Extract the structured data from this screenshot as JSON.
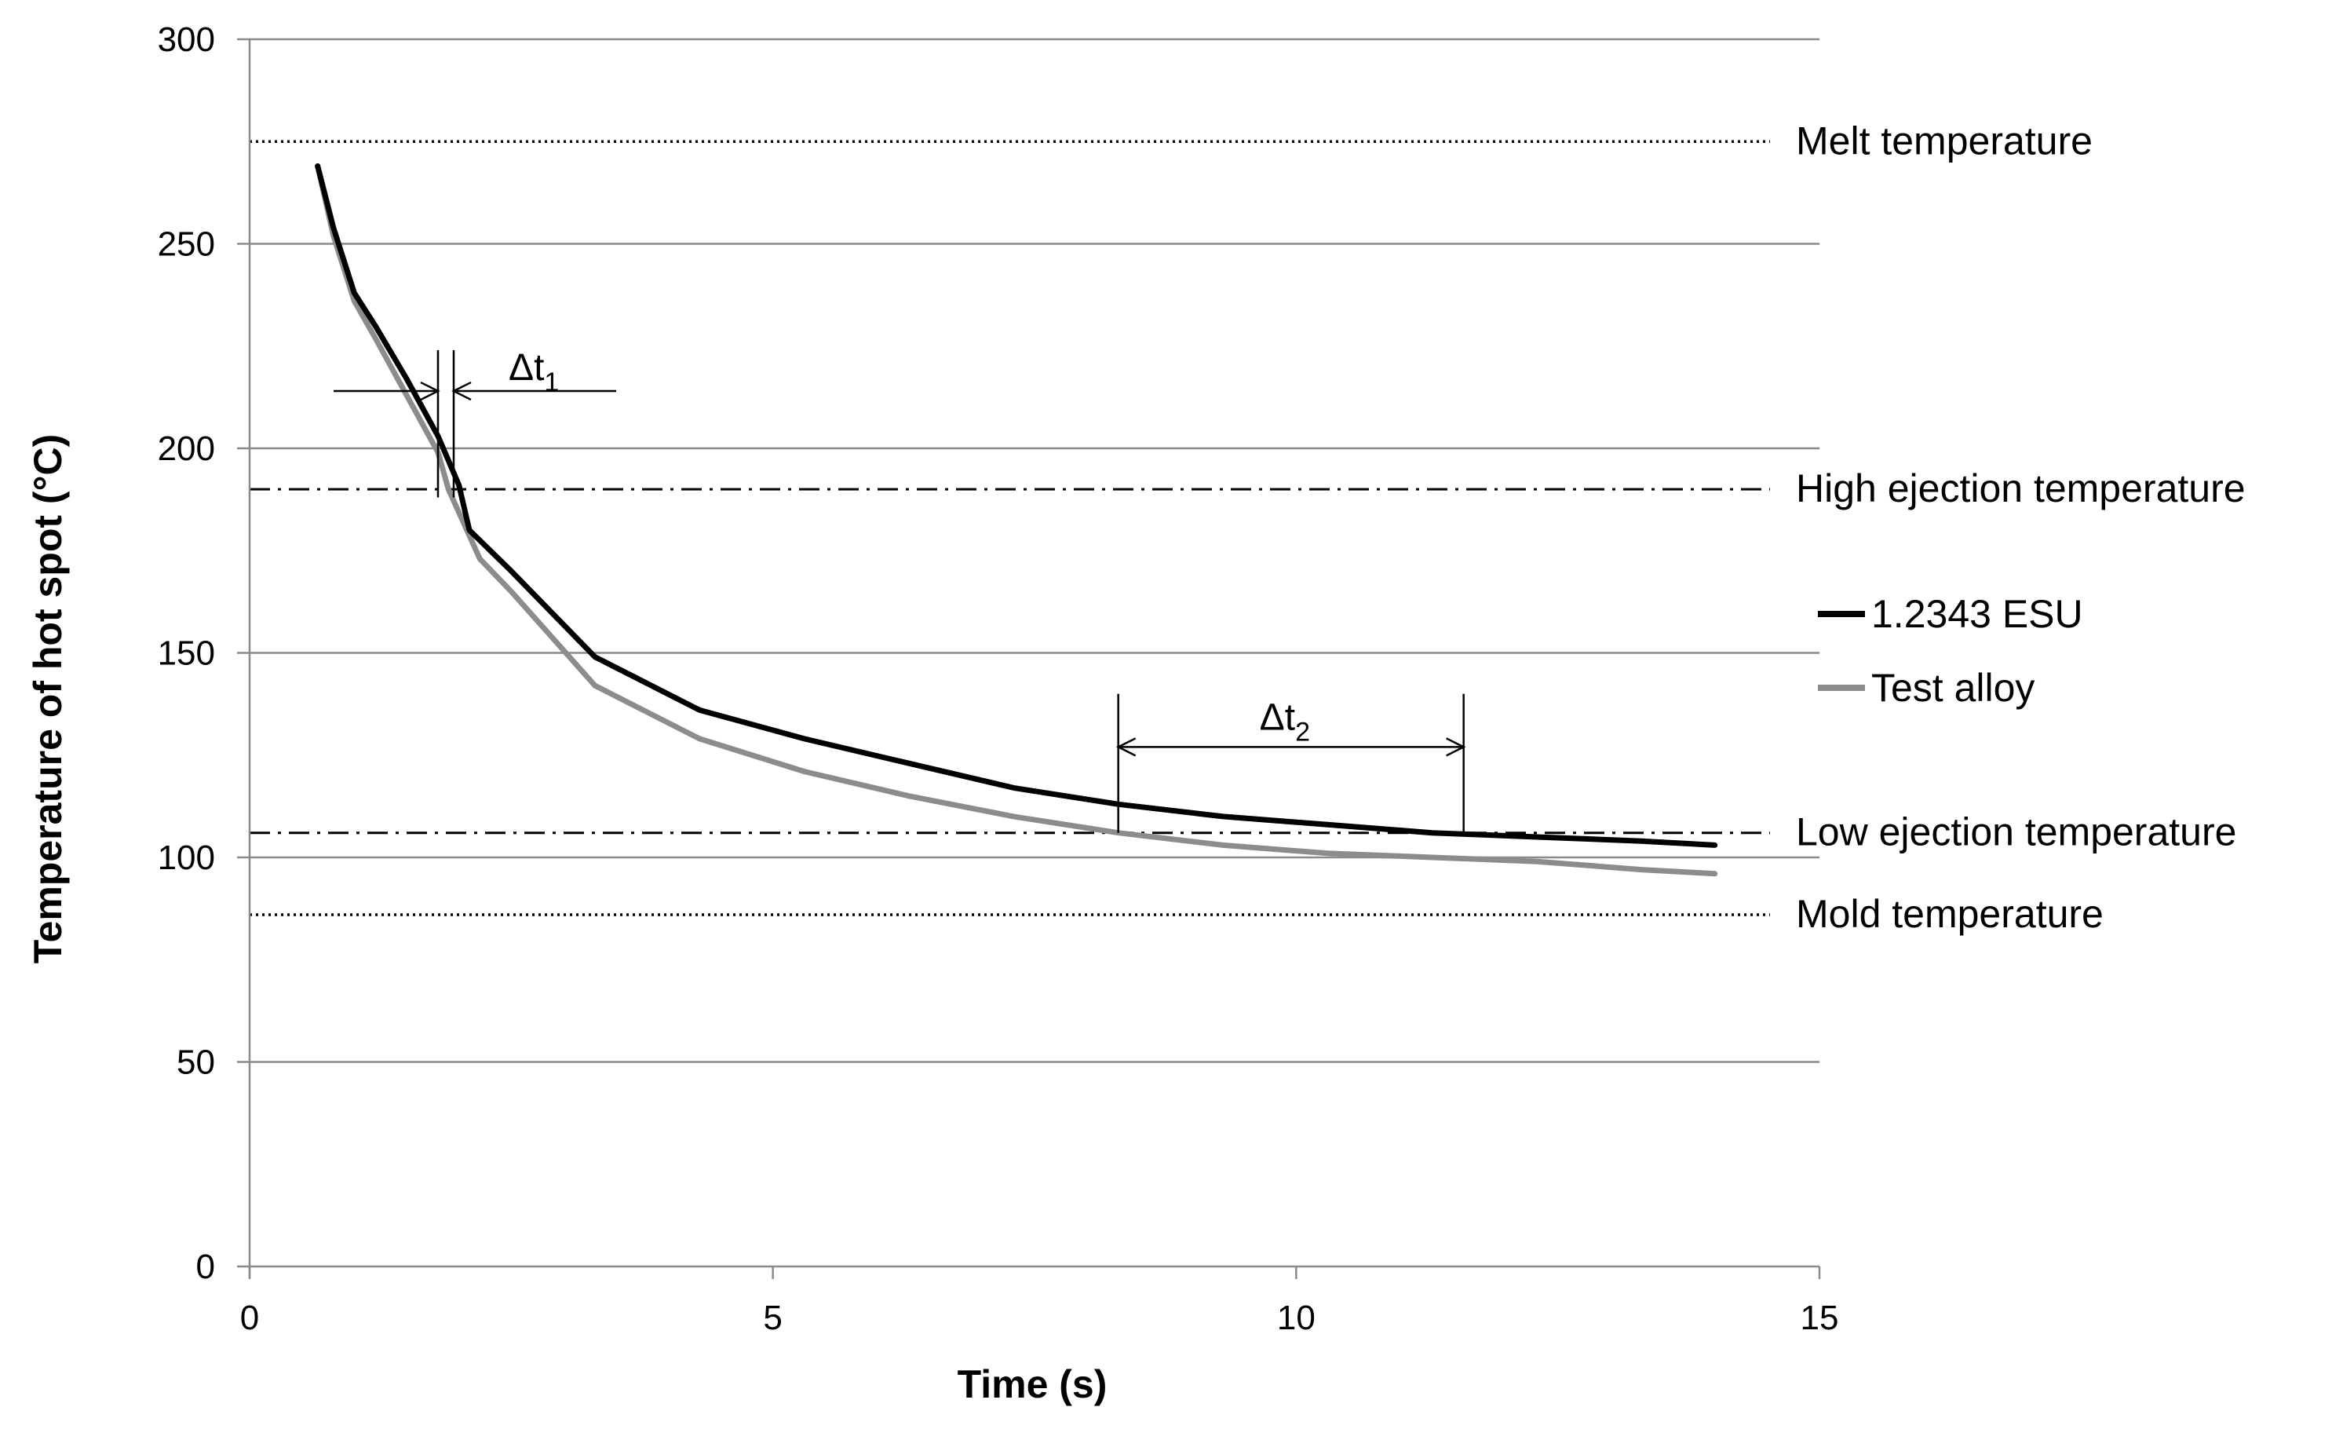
{
  "chart_data": {
    "type": "line",
    "title": "",
    "xlabel": "Time (s)",
    "ylabel": "Temperature of hot spot (°C)",
    "xlim": [
      0,
      15
    ],
    "ylim": [
      0,
      300
    ],
    "xticks": [
      0,
      5,
      10,
      15
    ],
    "yticks": [
      0,
      50,
      100,
      150,
      200,
      250,
      300
    ],
    "xtick_labels": [
      "0",
      "5",
      "10",
      "15"
    ],
    "ytick_labels": [
      "0",
      "50",
      "100",
      "150",
      "200",
      "250",
      "300"
    ],
    "grid": "horizontal",
    "legend_position": "right",
    "series": [
      {
        "name": "1.2343 ESU",
        "color": "#000000",
        "x": [
          0.65,
          0.8,
          1.0,
          1.2,
          1.5,
          1.8,
          2.0,
          2.1,
          2.5,
          3.3,
          4.3,
          5.3,
          6.3,
          7.3,
          8.3,
          9.3,
          10.3,
          11.3,
          12.3,
          13.3,
          14.0
        ],
        "y": [
          269,
          254,
          238,
          230,
          217,
          203,
          191,
          180,
          170,
          149,
          136,
          129,
          123,
          117,
          113,
          110,
          108,
          106,
          105,
          104,
          103
        ]
      },
      {
        "name": "Test alloy",
        "color": "#8c8c8c",
        "x": [
          0.65,
          0.8,
          1.0,
          1.2,
          1.5,
          1.8,
          1.9,
          2.2,
          2.5,
          3.3,
          4.3,
          5.3,
          6.3,
          7.3,
          8.3,
          9.3,
          10.3,
          11.3,
          12.3,
          13.3,
          14.0
        ],
        "y": [
          269,
          252,
          236,
          227,
          213,
          199,
          190,
          173,
          165,
          142,
          129,
          121,
          115,
          110,
          106,
          103,
          101,
          100,
          99,
          97,
          96
        ]
      }
    ],
    "reference_lines": [
      {
        "name": "melt",
        "label": "Melt temperature",
        "y": 275,
        "style": "dotted"
      },
      {
        "name": "high-ejection",
        "label": "High ejection temperature",
        "y": 190,
        "style": "dashdot"
      },
      {
        "name": "low-ejection",
        "label": "Low ejection temperature",
        "y": 106,
        "style": "dashdot"
      },
      {
        "name": "mold",
        "label": "Mold temperature",
        "y": 86,
        "style": "dotted"
      }
    ],
    "annotations": [
      {
        "name": "delta-t1",
        "symbol": "Δt",
        "subscript": "1",
        "x_start": 1.8,
        "x_end": 1.95
      },
      {
        "name": "delta-t2",
        "symbol": "Δt",
        "subscript": "2",
        "x_start": 8.3,
        "x_end": 11.6
      }
    ]
  }
}
